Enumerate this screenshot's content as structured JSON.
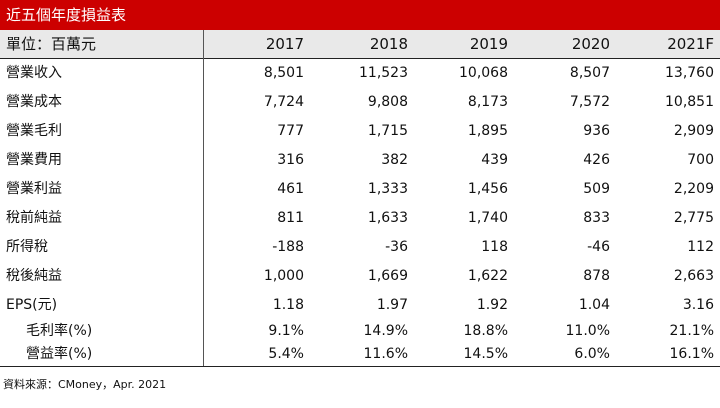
{
  "title": "近五個年度損益表",
  "table": {
    "unit_label": "單位：百萬元",
    "columns": [
      "2017",
      "2018",
      "2019",
      "2020",
      "2021F"
    ],
    "rows": [
      {
        "label": "營業收入",
        "values": [
          "8,501",
          "11,523",
          "10,068",
          "8,507",
          "13,760"
        ]
      },
      {
        "label": "營業成本",
        "values": [
          "7,724",
          "9,808",
          "8,173",
          "7,572",
          "10,851"
        ]
      },
      {
        "label": "營業毛利",
        "values": [
          "777",
          "1,715",
          "1,895",
          "936",
          "2,909"
        ]
      },
      {
        "label": "營業費用",
        "values": [
          "316",
          "382",
          "439",
          "426",
          "700"
        ]
      },
      {
        "label": "營業利益",
        "values": [
          "461",
          "1,333",
          "1,456",
          "509",
          "2,209"
        ]
      },
      {
        "label": "稅前純益",
        "values": [
          "811",
          "1,633",
          "1,740",
          "833",
          "2,775"
        ]
      },
      {
        "label": "所得稅",
        "values": [
          "-188",
          "-36",
          "118",
          "-46",
          "112"
        ]
      },
      {
        "label": "稅後純益",
        "values": [
          "1,000",
          "1,669",
          "1,622",
          "878",
          "2,663"
        ]
      },
      {
        "label": "EPS(元)",
        "values": [
          "1.18",
          "1.97",
          "1.92",
          "1.04",
          "3.16"
        ]
      },
      {
        "label": "毛利率(%)",
        "values": [
          "9.1%",
          "14.9%",
          "18.8%",
          "11.0%",
          "21.1%"
        ]
      },
      {
        "label": "營益率(%)",
        "values": [
          "5.4%",
          "11.6%",
          "14.5%",
          "6.0%",
          "16.1%"
        ]
      }
    ]
  },
  "source": "資料來源：CMoney，Apr. 2021",
  "colors": {
    "title_bg": "#cc0000",
    "header_bg": "#e9e9e9"
  }
}
